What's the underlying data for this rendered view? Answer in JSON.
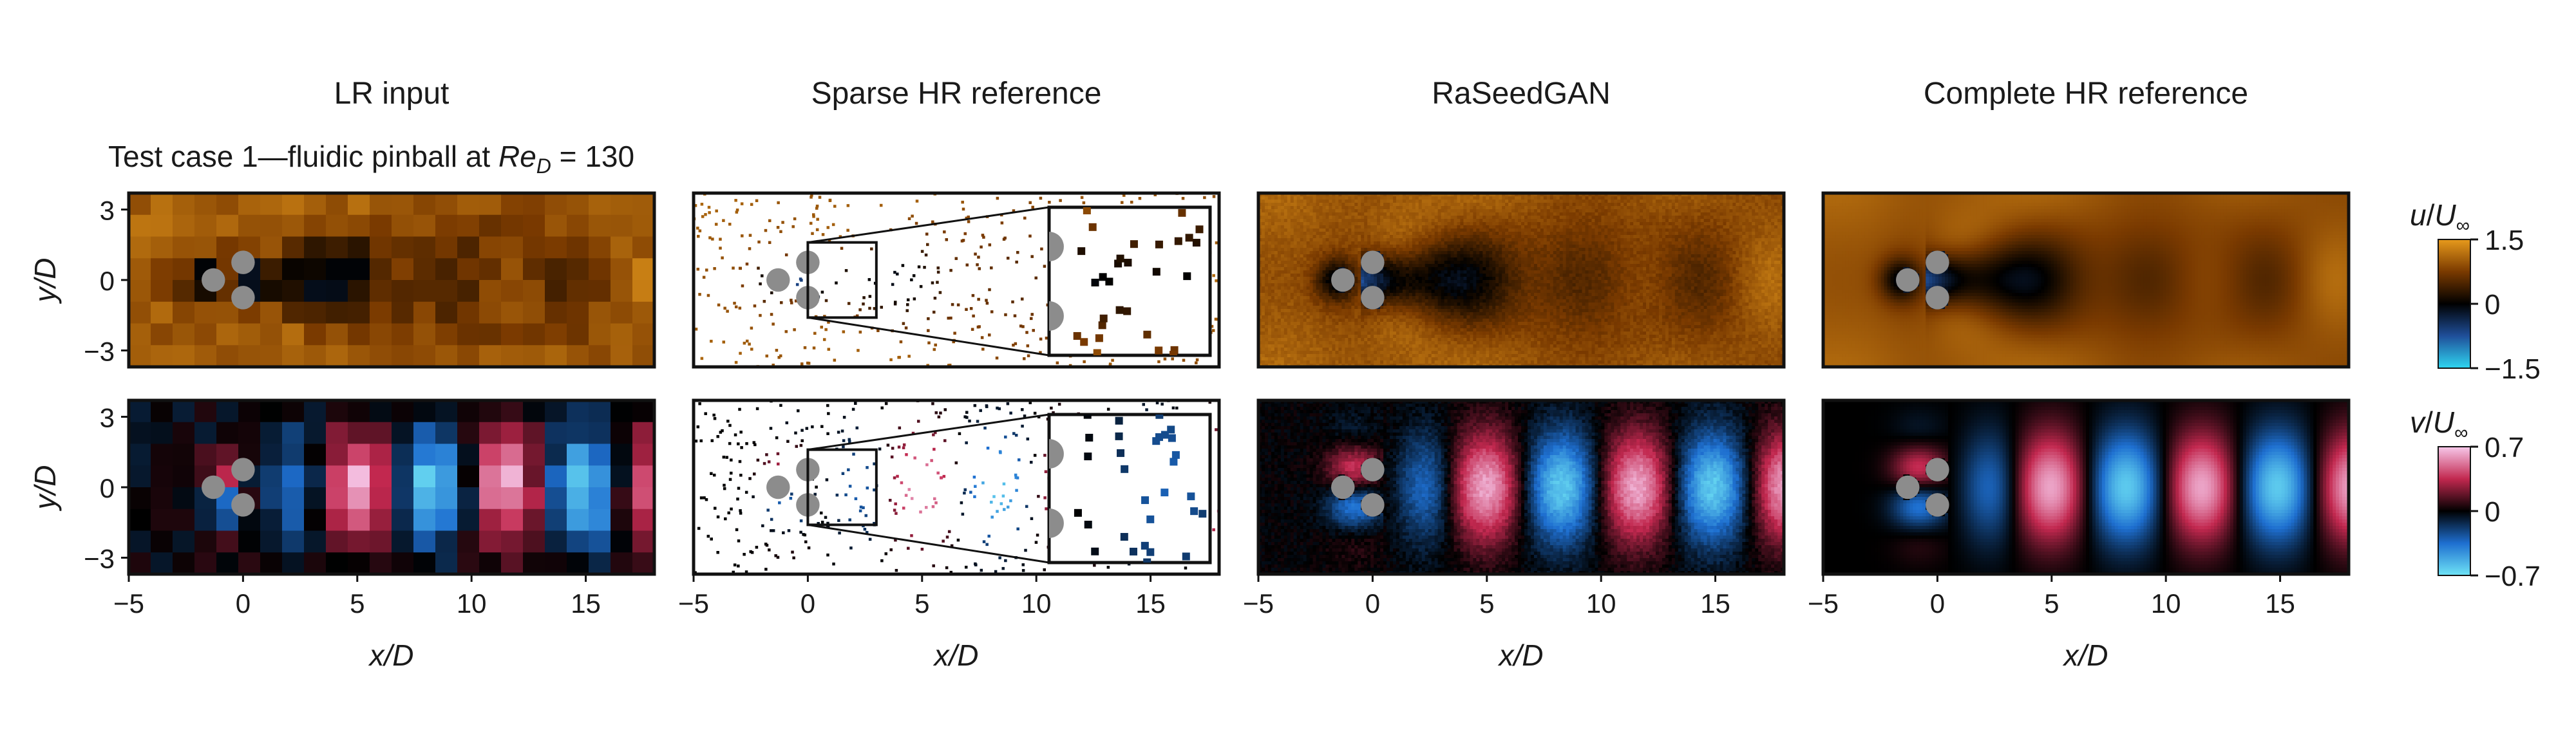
{
  "columns": [
    {
      "id": "lr",
      "title": "LR input"
    },
    {
      "id": "sparse",
      "title": "Sparse HR reference"
    },
    {
      "id": "gan",
      "title": "RaSeedGAN"
    },
    {
      "id": "hr",
      "title": "Complete HR reference"
    }
  ],
  "case_title": {
    "prefix": "Test case 1—fluidic pinball at ",
    "re": "Re",
    "sub": "D",
    "suffix": " = 130"
  },
  "chart_data": {
    "type": "heatmap",
    "x_axis": {
      "label": "x/D",
      "range": [
        -5,
        18
      ],
      "ticks": [
        -5,
        0,
        5,
        10,
        15
      ],
      "tick_labels": [
        "−5",
        "0",
        "5",
        "10",
        "15"
      ]
    },
    "y_axis": {
      "label": "y/D",
      "range": [
        -3.7,
        3.7
      ],
      "ticks": [
        -3,
        0,
        3
      ],
      "tick_labels": [
        "−3",
        "0",
        "3"
      ]
    },
    "cylinders": [
      {
        "x": -1.3,
        "y": 0
      },
      {
        "x": 0,
        "y": 0.75
      },
      {
        "x": 0,
        "y": -0.75
      }
    ],
    "cylinder_diameter": 1.0,
    "rows": [
      {
        "field": "u",
        "colorbar_label": {
          "var": "u",
          "den": "U",
          "sub": "∞"
        },
        "colormap": [
          "#2fd6f0",
          "#1f4f9a",
          "#000000",
          "#7a3a00",
          "#e79a1c"
        ],
        "range": [
          -1.5,
          1.5
        ],
        "ticks": [
          1.5,
          0,
          -1.5
        ],
        "tick_labels": [
          "1.5",
          "0",
          "−1.5"
        ]
      },
      {
        "field": "v",
        "colorbar_label": {
          "var": "v",
          "den": "U",
          "sub": "∞"
        },
        "colormap": [
          "#6fe4f6",
          "#1e6fd0",
          "#000000",
          "#c2284f",
          "#f7c8ea"
        ],
        "range": [
          -0.7,
          0.7
        ],
        "ticks": [
          0.7,
          0,
          -0.7
        ],
        "tick_labels": [
          "0.7",
          "0",
          "−0.7"
        ]
      }
    ],
    "zoom_window": {
      "x": [
        0,
        3
      ],
      "y": [
        -1.6,
        1.6
      ]
    }
  }
}
